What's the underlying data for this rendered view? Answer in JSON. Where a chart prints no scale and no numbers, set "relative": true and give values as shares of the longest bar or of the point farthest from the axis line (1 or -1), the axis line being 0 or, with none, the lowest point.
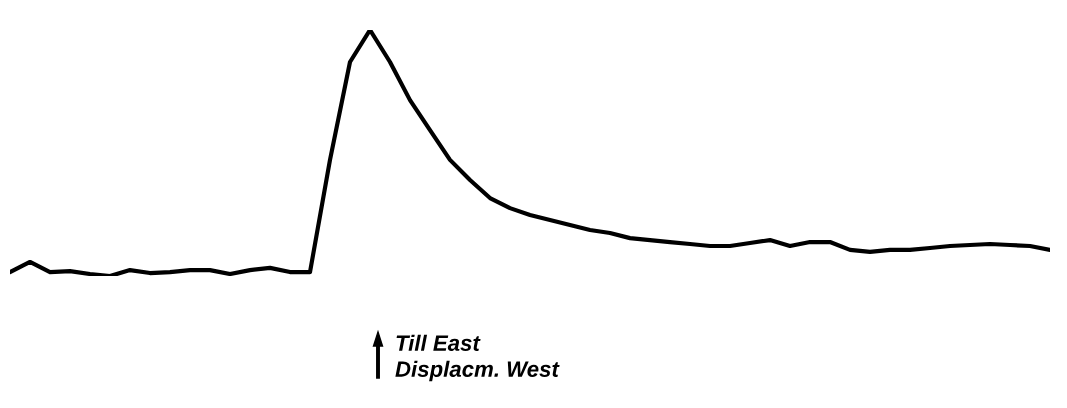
{
  "chart_data": {
    "type": "line",
    "relative": true,
    "color": "#000000",
    "categories": [
      null,
      null,
      null,
      null,
      null,
      null,
      null,
      null,
      null,
      null,
      null,
      null,
      null,
      null,
      null,
      null,
      null,
      null,
      null,
      null,
      null,
      null,
      null,
      null,
      null,
      null,
      null,
      null,
      null,
      null,
      null,
      null,
      null,
      null,
      null,
      null,
      null,
      null,
      null,
      null,
      null,
      null,
      null,
      null,
      null,
      null,
      null,
      null,
      null,
      null,
      null,
      null,
      null
    ],
    "values": [
      0.016,
      0.057,
      0.016,
      0.02,
      0.008,
      0,
      0.024,
      0.012,
      0.016,
      0.024,
      0.024,
      0.008,
      0.024,
      0.033,
      0.016,
      0.016,
      0.472,
      0.87,
      1,
      0.87,
      0.715,
      0.593,
      0.472,
      0.39,
      0.317,
      0.276,
      0.248,
      0.228,
      0.207,
      0.187,
      0.175,
      0.154,
      0.146,
      0.138,
      0.13,
      0.122,
      0.122,
      0.134,
      0.146,
      0.122,
      0.138,
      0.138,
      0.106,
      0.098,
      0.106,
      0.106,
      0.114,
      0.122,
      0.126,
      0.13,
      0.126,
      0.122,
      0.106
    ],
    "annotations": [
      "Till East",
      "Displacm. West"
    ]
  }
}
